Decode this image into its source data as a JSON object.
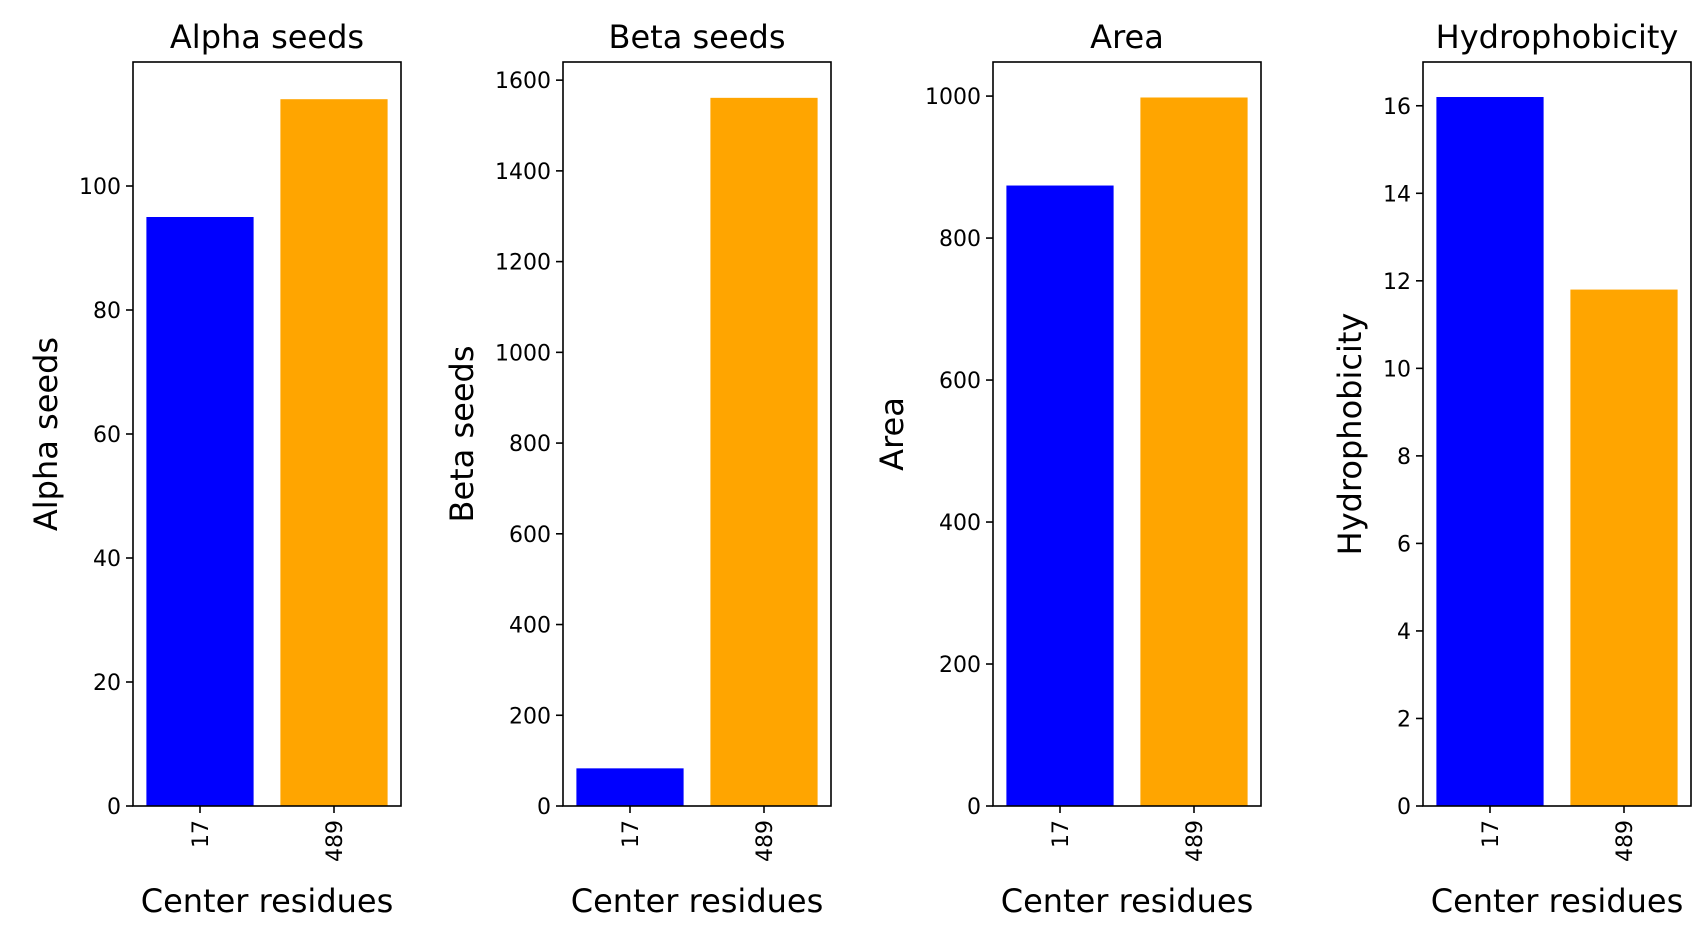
{
  "figure": {
    "panel_xlabel": "Center residues",
    "bar_colors": [
      "#0000ff",
      "#ffa500"
    ]
  },
  "chart_data": [
    {
      "type": "bar",
      "title": "Alpha seeds",
      "xlabel": "Center residues",
      "ylabel": "Alpha seeds",
      "categories": [
        "17",
        "489"
      ],
      "values": [
        95,
        114
      ],
      "ylim": [
        0,
        120
      ],
      "yticks": [
        0,
        20,
        40,
        60,
        80,
        100
      ],
      "grid": false
    },
    {
      "type": "bar",
      "title": "Beta seeds",
      "xlabel": "Center residues",
      "ylabel": "Beta seeds",
      "categories": [
        "17",
        "489"
      ],
      "values": [
        83,
        1561
      ],
      "ylim": [
        0,
        1640
      ],
      "yticks": [
        0,
        200,
        400,
        600,
        800,
        1000,
        1200,
        1400,
        1600
      ],
      "grid": false
    },
    {
      "type": "bar",
      "title": "Area",
      "xlabel": "Center residues",
      "ylabel": "Area",
      "categories": [
        "17",
        "489"
      ],
      "values": [
        874,
        998
      ],
      "ylim": [
        0,
        1048
      ],
      "yticks": [
        0,
        200,
        400,
        600,
        800,
        1000
      ],
      "grid": false
    },
    {
      "type": "bar",
      "title": "Hydrophobicity",
      "xlabel": "Center residues",
      "ylabel": "Hydrophobicity",
      "categories": [
        "17",
        "489"
      ],
      "values": [
        16.2,
        11.8
      ],
      "ylim": [
        0,
        17
      ],
      "yticks": [
        0,
        2,
        4,
        6,
        8,
        10,
        12,
        14,
        16
      ],
      "grid": false
    }
  ]
}
